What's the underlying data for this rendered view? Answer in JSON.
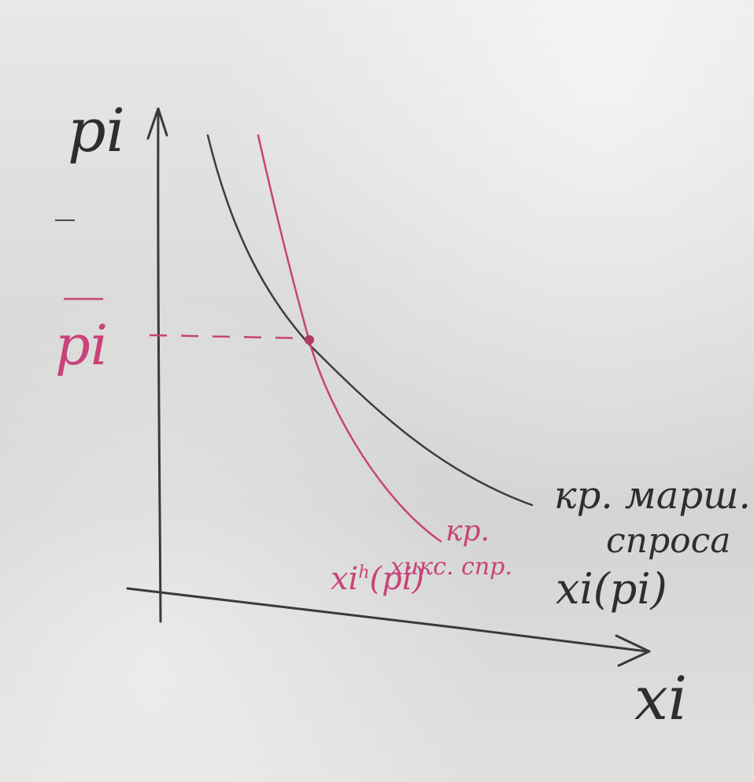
{
  "diagram": {
    "y_axis_label": "pi",
    "x_axis_label": "xi",
    "price_level_label": "pi",
    "marshallian_curve_label_line1": "кр. марш.",
    "marshallian_curve_label_line2": "спроса",
    "marshallian_function_label": "xi(pi)",
    "hicksian_curve_label_line1": "кр.",
    "hicksian_curve_label_line2": "хикс. спр.",
    "hicksian_function_label": "xi",
    "hicksian_function_superscript": "h",
    "hicksian_function_argument": "(pi)",
    "colors": {
      "ink": "#2e2e2e",
      "accent": "#c8437a",
      "board": "#dcdcda"
    }
  }
}
